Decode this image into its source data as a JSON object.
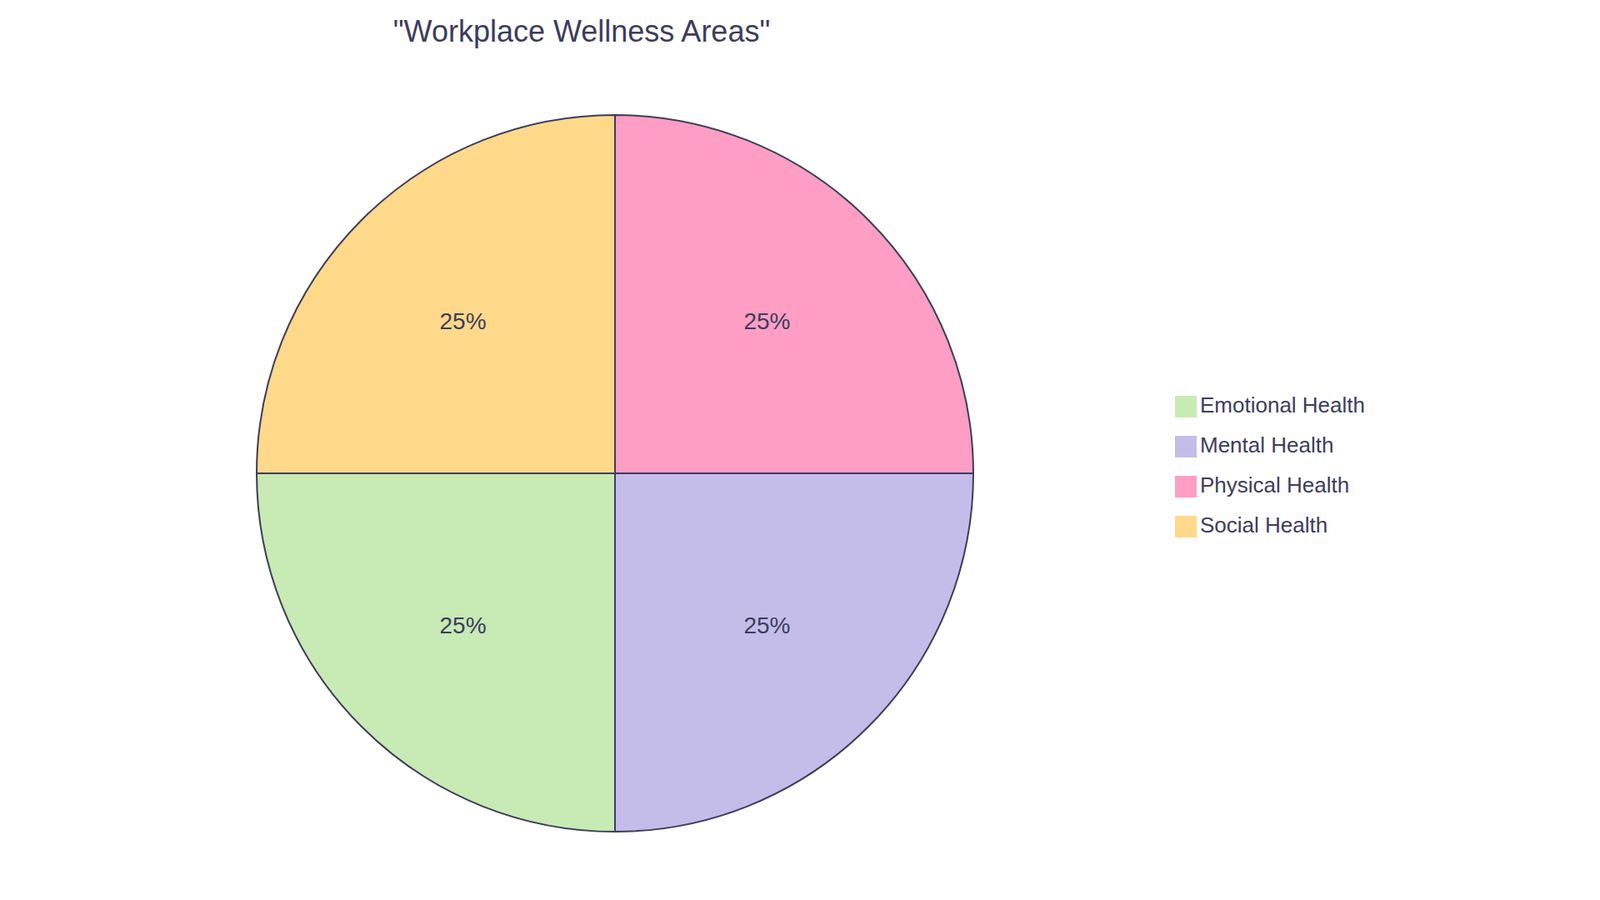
{
  "chart_data": {
    "type": "pie",
    "title": "\"Workplace Wellness Areas\"",
    "categories": [
      "Physical Health",
      "Mental Health",
      "Emotional Health",
      "Social Health"
    ],
    "values": [
      25,
      25,
      25,
      25
    ],
    "value_labels": [
      "25%",
      "25%",
      "25%",
      "25%"
    ],
    "colors": [
      "#FF9EC4",
      "#C4BDEA",
      "#C8EAB4",
      "#FFD98A"
    ],
    "data_labels": true,
    "legend": "right"
  }
}
